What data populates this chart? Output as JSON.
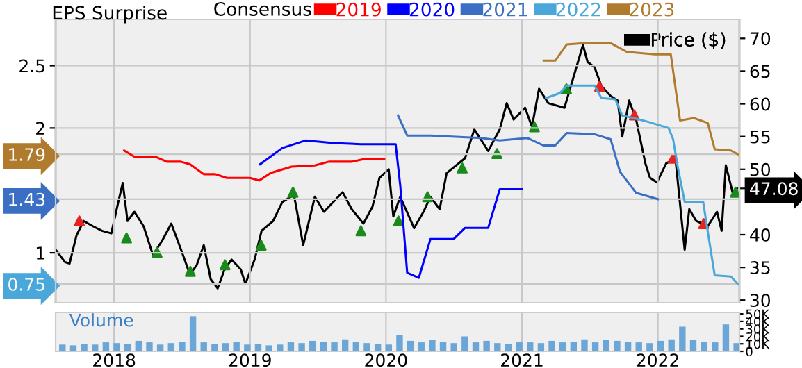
{
  "chart_data": [
    {
      "type": "line",
      "ylabel": "EPS Surprise",
      "legend_title": "Consensus",
      "legend": "top",
      "grid": true,
      "marker": "none",
      "line_style": "solid",
      "tick_labels": "y",
      "xlim": [
        2017.57,
        2022.6
      ],
      "xticks": [
        2018,
        2019,
        2020,
        2021,
        2022
      ],
      "ylim": [
        0.6,
        2.87
      ],
      "yticks": [
        0.75,
        1,
        1.43,
        1.79,
        2,
        2.5
      ],
      "y2lim": [
        29.6,
        72.9
      ],
      "y2ticks": [
        30,
        35,
        40,
        47.08,
        50,
        55,
        60,
        65,
        70
      ],
      "series": [
        {
          "name": "2019",
          "color": "#ff0000",
          "x": [
            2018.074,
            2018.15,
            2018.303,
            2018.388,
            2018.49,
            2018.558,
            2018.66,
            2018.745,
            2018.83,
            2019.0,
            2019.068,
            2019.153,
            2019.306,
            2019.477,
            2019.579,
            2019.748,
            2019.834,
            2019.987
          ],
          "values": [
            1.82,
            1.77,
            1.77,
            1.73,
            1.73,
            1.71,
            1.63,
            1.63,
            1.6,
            1.6,
            1.58,
            1.64,
            1.69,
            1.7,
            1.73,
            1.73,
            1.75,
            1.75
          ]
        },
        {
          "name": "2020",
          "color": "#0000ff",
          "x": [
            2019.074,
            2019.238,
            2019.408,
            2019.612,
            2019.816,
            2020.071,
            2020.105,
            2020.156,
            2020.242,
            2020.327,
            2020.497,
            2020.582,
            2020.752,
            2020.837,
            2021.0
          ],
          "values": [
            1.71,
            1.84,
            1.9,
            1.88,
            1.87,
            1.87,
            1.54,
            0.84,
            0.8,
            1.11,
            1.11,
            1.2,
            1.2,
            1.51,
            1.51
          ]
        },
        {
          "name": "2021",
          "color": "#3a6fc4",
          "x": [
            2020.089,
            2020.156,
            2020.327,
            2020.701,
            2020.837,
            2021.041,
            2021.16,
            2021.245,
            2021.33,
            2021.534,
            2021.653,
            2021.721,
            2021.84,
            2022.0
          ],
          "values": [
            2.1,
            1.94,
            1.94,
            1.92,
            1.9,
            1.92,
            1.86,
            1.86,
            1.96,
            1.95,
            1.91,
            1.65,
            1.48,
            1.43
          ]
        },
        {
          "name": "2022",
          "color": "#49a7d9",
          "x": [
            2021.177,
            2021.279,
            2021.33,
            2021.449,
            2021.534,
            2021.585,
            2021.687,
            2021.738,
            2021.823,
            2021.926,
            2022.079,
            2022.112,
            2022.146,
            2022.197,
            2022.333,
            2022.367,
            2022.418,
            2022.537,
            2022.588
          ],
          "values": [
            2.24,
            2.28,
            2.34,
            2.34,
            2.34,
            2.24,
            2.23,
            2.1,
            2.08,
            2.05,
            2.0,
            1.91,
            1.69,
            1.41,
            1.41,
            1.17,
            0.82,
            0.81,
            0.75
          ]
        },
        {
          "name": "2023",
          "color": "#b07b2c",
          "x": [
            2021.16,
            2021.245,
            2021.33,
            2021.449,
            2021.653,
            2021.772,
            2021.977,
            2022.095,
            2022.163,
            2022.265,
            2022.367,
            2022.418,
            2022.537,
            2022.588
          ],
          "values": [
            2.54,
            2.54,
            2.67,
            2.68,
            2.68,
            2.61,
            2.59,
            2.59,
            2.06,
            2.08,
            2.04,
            1.83,
            1.82,
            1.79
          ]
        },
        {
          "name": "Price ($)",
          "color": "#000000",
          "axis": "y2",
          "x": [
            2017.571,
            2017.64,
            2017.673,
            2017.724,
            2017.776,
            2017.844,
            2017.911,
            2017.98,
            2018.031,
            2018.064,
            2018.099,
            2018.15,
            2018.217,
            2018.286,
            2018.354,
            2018.421,
            2018.507,
            2018.558,
            2018.609,
            2018.66,
            2018.711,
            2018.762,
            2018.813,
            2018.864,
            2018.932,
            2018.966,
            2019.034,
            2019.085,
            2019.17,
            2019.238,
            2019.323,
            2019.391,
            2019.477,
            2019.544,
            2019.681,
            2019.748,
            2019.834,
            2019.901,
            2019.952,
            2020.02,
            2020.054,
            2020.105,
            2020.207,
            2020.276,
            2020.327,
            2020.395,
            2020.446,
            2020.582,
            2020.65,
            2020.752,
            2020.837,
            2020.888,
            2020.939,
            2021.023,
            2021.074,
            2021.126,
            2021.194,
            2021.313,
            2021.381,
            2021.449,
            2021.483,
            2021.534,
            2021.585,
            2021.653,
            2021.704,
            2021.738,
            2021.789,
            2021.84,
            2021.908,
            2021.942,
            2021.993,
            2022.061,
            2022.129,
            2022.197,
            2022.231,
            2022.282,
            2022.367,
            2022.435,
            2022.469,
            2022.5,
            2022.554,
            2022.582
          ],
          "values": [
            37.7,
            35.8,
            35.6,
            39.9,
            42.1,
            41.3,
            40.6,
            40.2,
            45.0,
            47.9,
            42.1,
            43.5,
            41.3,
            36.9,
            39.1,
            41.7,
            36.9,
            33.9,
            35.4,
            38.4,
            33.2,
            31.8,
            34.7,
            36.2,
            34.7,
            32.5,
            36.2,
            40.6,
            42.1,
            45.0,
            46.1,
            38.4,
            45.8,
            43.5,
            46.5,
            43.9,
            41.7,
            44.3,
            48.7,
            50.0,
            42.8,
            45.8,
            41.0,
            43.5,
            45.8,
            43.9,
            49.4,
            51.7,
            56.1,
            52.8,
            56.1,
            60.1,
            57.6,
            59.4,
            56.5,
            62.3,
            60.1,
            59.4,
            64.2,
            69.0,
            66.4,
            65.6,
            62.7,
            61.2,
            60.5,
            55.0,
            60.5,
            57.6,
            50.9,
            48.7,
            48.0,
            50.9,
            51.7,
            37.7,
            43.9,
            42.1,
            41.3,
            43.5,
            40.6,
            50.6,
            46.1,
            47.08
          ]
        },
        {
          "type": "scatter",
          "marker": "triangle",
          "color": "#1a8a1a",
          "axis": "y2",
          "x": [
            2018.092,
            2018.316,
            2018.561,
            2018.816,
            2019.082,
            2019.316,
            2019.816,
            2020.092,
            2020.306,
            2020.561,
            2020.816,
            2021.092,
            2021.327,
            2022.571
          ],
          "values": [
            39.5,
            37.3,
            34.4,
            35.4,
            38.4,
            46.5,
            40.6,
            42.1,
            45.8,
            50.2,
            52.4,
            56.5,
            62.3,
            46.5
          ]
        },
        {
          "type": "scatter",
          "marker": "triangle",
          "color": "#e8231f",
          "axis": "y2",
          "x": [
            2017.745,
            2021.571,
            2021.827,
            2022.112,
            2022.337
          ],
          "values": [
            42.1,
            62.7,
            58.3,
            51.7,
            41.7
          ]
        }
      ]
    },
    {
      "type": "bar",
      "ylabel": "Volume",
      "grid": true,
      "color": "#6aa6d8",
      "xlim": [
        2017.57,
        2022.6
      ],
      "xticks": [
        2018,
        2019,
        2020,
        2021,
        2022
      ],
      "ylim": [
        0,
        52000
      ],
      "yticks": [
        0,
        {
          "value": 10000,
          "label": "10K"
        },
        {
          "value": 20000,
          "label": "20K"
        },
        {
          "value": 30000,
          "label": "30K"
        },
        {
          "value": 40000,
          "label": "40K"
        },
        {
          "value": 50000,
          "label": "50K"
        }
      ],
      "x": [
        2017.62,
        2017.7,
        2017.78,
        2017.86,
        2017.94,
        2018.02,
        2018.1,
        2018.18,
        2018.26,
        2018.34,
        2018.42,
        2018.5,
        2018.58,
        2018.66,
        2018.74,
        2018.82,
        2018.9,
        2018.98,
        2019.06,
        2019.14,
        2019.22,
        2019.3,
        2019.38,
        2019.46,
        2019.54,
        2019.62,
        2019.7,
        2019.78,
        2019.86,
        2019.94,
        2020.02,
        2020.1,
        2020.18,
        2020.26,
        2020.34,
        2020.42,
        2020.5,
        2020.58,
        2020.66,
        2020.74,
        2020.82,
        2020.9,
        2020.98,
        2021.06,
        2021.14,
        2021.22,
        2021.3,
        2021.38,
        2021.46,
        2021.54,
        2021.62,
        2021.7,
        2021.78,
        2021.86,
        2021.94,
        2022.02,
        2022.1,
        2022.18,
        2022.26,
        2022.34,
        2022.42,
        2022.5,
        2022.58
      ],
      "values": [
        9000,
        8000,
        10000,
        9000,
        12000,
        11000,
        10000,
        14000,
        12000,
        9000,
        11000,
        13000,
        47000,
        12000,
        10000,
        11000,
        13000,
        9000,
        10000,
        8000,
        9000,
        12000,
        11000,
        14000,
        13000,
        12000,
        16000,
        13000,
        11000,
        10000,
        9000,
        22000,
        14000,
        12000,
        15000,
        13000,
        11000,
        20000,
        12000,
        14000,
        11000,
        10000,
        13000,
        12000,
        11000,
        14000,
        12000,
        13000,
        16000,
        12000,
        15000,
        14000,
        13000,
        12000,
        11000,
        14000,
        16000,
        33000,
        15000,
        13000,
        12000,
        36000,
        11000
      ]
    }
  ]
}
